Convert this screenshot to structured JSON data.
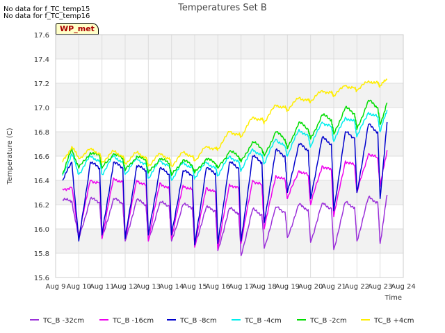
{
  "notes": [
    "No data for f_TC_temp15",
    "No data for f_TC_temp16"
  ],
  "badge": "WP_met",
  "chart_data": {
    "type": "line",
    "title": "Temperatures Set B",
    "xlabel": "Time",
    "ylabel": "Temperature (C)",
    "ylim": [
      15.6,
      17.6
    ],
    "yticks": [
      "15.6",
      "15.8",
      "16.0",
      "16.2",
      "16.4",
      "16.6",
      "16.8",
      "17.0",
      "17.2",
      "17.4",
      "17.6"
    ],
    "xlim_days": [
      9,
      24
    ],
    "xticks": [
      "Aug 9",
      "Aug 10",
      "Aug 11",
      "Aug 12",
      "Aug 13",
      "Aug 14",
      "Aug 15",
      "Aug 16",
      "Aug 17",
      "Aug 18",
      "Aug 19",
      "Aug 20",
      "Aug 21",
      "Aug 22",
      "Aug 23",
      "Aug 24"
    ],
    "grid": true,
    "legend_position": "bottom",
    "series": [
      {
        "name": "TC_B -32cm",
        "color": "#9b30d9",
        "x": [
          9.3,
          9.7,
          10.0,
          10.5,
          10.9,
          11.0,
          11.5,
          11.9,
          12.0,
          12.5,
          12.9,
          13.0,
          13.5,
          13.9,
          14.0,
          14.5,
          14.9,
          15.0,
          15.5,
          15.9,
          16.0,
          16.5,
          16.9,
          17.0,
          17.5,
          17.9,
          18.0,
          18.5,
          18.9,
          19.0,
          19.5,
          19.9,
          20.0,
          20.5,
          20.9,
          21.0,
          21.5,
          21.9,
          22.0,
          22.5,
          22.9,
          23.0,
          23.3
        ],
        "y": [
          16.24,
          16.23,
          15.92,
          16.25,
          16.22,
          15.92,
          16.25,
          16.21,
          15.9,
          16.24,
          16.2,
          15.9,
          16.22,
          16.19,
          15.9,
          16.2,
          16.18,
          15.86,
          16.18,
          16.15,
          15.82,
          16.17,
          16.13,
          15.78,
          16.16,
          16.12,
          15.84,
          16.18,
          16.14,
          15.93,
          16.2,
          16.16,
          15.89,
          16.21,
          16.17,
          15.83,
          16.22,
          16.18,
          15.9,
          16.26,
          16.22,
          15.88,
          16.28
        ]
      },
      {
        "name": "TC_B -16cm",
        "color": "#ee00ee",
        "x": [
          9.3,
          9.7,
          10.0,
          10.5,
          10.9,
          11.0,
          11.5,
          11.9,
          12.0,
          12.5,
          12.9,
          13.0,
          13.5,
          13.9,
          14.0,
          14.5,
          14.9,
          15.0,
          15.5,
          15.9,
          16.0,
          16.5,
          16.9,
          17.0,
          17.5,
          17.9,
          18.0,
          18.5,
          18.9,
          19.0,
          19.5,
          19.9,
          20.0,
          20.5,
          20.9,
          21.0,
          21.5,
          21.9,
          22.0,
          22.5,
          22.9,
          23.0,
          23.3
        ],
        "y": [
          16.33,
          16.34,
          15.95,
          16.4,
          16.38,
          15.92,
          16.42,
          16.38,
          15.92,
          16.4,
          16.36,
          15.9,
          16.38,
          16.33,
          15.92,
          16.36,
          16.32,
          15.85,
          16.34,
          16.3,
          15.83,
          16.37,
          16.33,
          15.88,
          16.4,
          16.36,
          16.0,
          16.44,
          16.4,
          16.25,
          16.48,
          16.44,
          16.2,
          16.52,
          16.48,
          16.1,
          16.56,
          16.52,
          16.3,
          16.62,
          16.58,
          16.35,
          16.65
        ]
      },
      {
        "name": "TC_B -8cm",
        "color": "#0000cc",
        "x": [
          9.3,
          9.7,
          10.0,
          10.5,
          10.9,
          11.0,
          11.5,
          11.9,
          12.0,
          12.5,
          12.9,
          13.0,
          13.5,
          13.9,
          14.0,
          14.5,
          14.9,
          15.0,
          15.5,
          15.9,
          16.0,
          16.5,
          16.9,
          17.0,
          17.5,
          17.9,
          18.0,
          18.5,
          18.9,
          19.0,
          19.5,
          19.9,
          20.0,
          20.5,
          20.9,
          21.0,
          21.5,
          21.9,
          22.0,
          22.5,
          22.9,
          23.0,
          23.3
        ],
        "y": [
          16.4,
          16.55,
          15.9,
          16.55,
          16.5,
          15.95,
          16.55,
          16.5,
          15.92,
          16.52,
          16.48,
          15.95,
          16.5,
          16.45,
          15.95,
          16.48,
          16.44,
          15.87,
          16.5,
          16.46,
          15.88,
          16.55,
          16.5,
          15.9,
          16.6,
          16.55,
          16.05,
          16.65,
          16.6,
          16.3,
          16.7,
          16.65,
          16.25,
          16.75,
          16.7,
          16.15,
          16.8,
          16.75,
          16.3,
          16.86,
          16.8,
          16.25,
          16.88
        ]
      },
      {
        "name": "TC_B -4cm",
        "color": "#00eeee",
        "x": [
          9.3,
          9.7,
          10.0,
          10.5,
          10.9,
          11.0,
          11.5,
          11.9,
          12.0,
          12.5,
          12.9,
          13.0,
          13.5,
          13.9,
          14.0,
          14.5,
          14.9,
          15.0,
          15.5,
          15.9,
          16.0,
          16.5,
          16.9,
          17.0,
          17.5,
          17.9,
          18.0,
          18.5,
          18.9,
          19.0,
          19.5,
          19.9,
          20.0,
          20.5,
          20.9,
          21.0,
          21.5,
          21.9,
          22.0,
          22.5,
          22.9,
          23.0,
          23.3
        ],
        "y": [
          16.44,
          16.62,
          16.45,
          16.6,
          16.56,
          16.45,
          16.6,
          16.55,
          16.45,
          16.58,
          16.53,
          16.42,
          16.56,
          16.52,
          16.4,
          16.55,
          16.5,
          16.42,
          16.55,
          16.5,
          16.44,
          16.6,
          16.55,
          16.48,
          16.66,
          16.6,
          16.54,
          16.74,
          16.68,
          16.6,
          16.82,
          16.76,
          16.68,
          16.88,
          16.84,
          16.72,
          16.92,
          16.88,
          16.76,
          16.96,
          16.92,
          16.8,
          16.98
        ]
      },
      {
        "name": "TC_B -2cm",
        "color": "#00dd00",
        "x": [
          9.3,
          9.7,
          10.0,
          10.5,
          10.9,
          11.0,
          11.5,
          11.9,
          12.0,
          12.5,
          12.9,
          13.0,
          13.5,
          13.9,
          14.0,
          14.5,
          14.9,
          15.0,
          15.5,
          15.9,
          16.0,
          16.5,
          16.9,
          17.0,
          17.5,
          17.9,
          18.0,
          18.5,
          18.9,
          19.0,
          19.5,
          19.9,
          20.0,
          20.5,
          20.9,
          21.0,
          21.5,
          21.9,
          22.0,
          22.5,
          22.9,
          23.0,
          23.3
        ],
        "y": [
          16.45,
          16.66,
          16.5,
          16.63,
          16.6,
          16.5,
          16.62,
          16.58,
          16.48,
          16.6,
          16.56,
          16.46,
          16.58,
          16.54,
          16.44,
          16.57,
          16.52,
          16.46,
          16.58,
          16.54,
          16.5,
          16.64,
          16.6,
          16.55,
          16.72,
          16.66,
          16.6,
          16.8,
          16.74,
          16.66,
          16.88,
          16.82,
          16.74,
          16.94,
          16.9,
          16.78,
          17.0,
          16.95,
          16.82,
          17.06,
          17.0,
          16.86,
          17.04
        ]
      },
      {
        "name": "TC_B +4cm",
        "color": "#ffee00",
        "x": [
          9.3,
          9.7,
          10.0,
          10.5,
          10.9,
          11.0,
          11.5,
          11.9,
          12.0,
          12.5,
          12.9,
          13.0,
          13.5,
          13.9,
          14.0,
          14.5,
          14.9,
          15.0,
          15.5,
          15.9,
          16.0,
          16.5,
          16.9,
          17.0,
          17.5,
          17.9,
          18.0,
          18.5,
          18.9,
          19.0,
          19.5,
          19.9,
          20.0,
          20.5,
          20.9,
          21.0,
          21.5,
          21.9,
          22.0,
          22.5,
          22.9,
          23.0,
          23.3
        ],
        "y": [
          16.55,
          16.68,
          16.58,
          16.66,
          16.62,
          16.55,
          16.64,
          16.6,
          16.54,
          16.63,
          16.59,
          16.52,
          16.62,
          16.58,
          16.52,
          16.63,
          16.6,
          16.56,
          16.68,
          16.66,
          16.66,
          16.8,
          16.78,
          16.76,
          16.92,
          16.9,
          16.88,
          17.02,
          17.0,
          16.98,
          17.08,
          17.06,
          17.05,
          17.14,
          17.12,
          17.1,
          17.18,
          17.16,
          17.14,
          17.22,
          17.2,
          17.18,
          17.23
        ]
      }
    ]
  }
}
